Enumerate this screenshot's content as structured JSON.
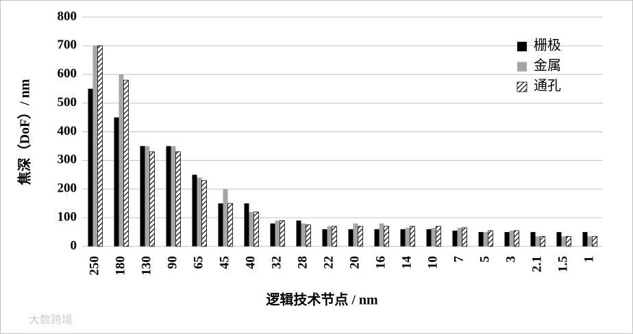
{
  "chart_data": {
    "type": "bar",
    "x_label": "逻辑技术节点 / nm",
    "y_label": "焦深（DoF）/ nm",
    "categories": [
      "250",
      "180",
      "130",
      "90",
      "65",
      "45",
      "40",
      "32",
      "28",
      "22",
      "20",
      "16",
      "14",
      "10",
      "7",
      "5",
      "3",
      "2.1",
      "1.5",
      "1"
    ],
    "series": [
      {
        "name": "栅极",
        "color": "#000000",
        "values": [
          550,
          450,
          350,
          350,
          250,
          150,
          150,
          80,
          90,
          60,
          60,
          60,
          60,
          60,
          55,
          50,
          50,
          50,
          50,
          50
        ]
      },
      {
        "name": "金属",
        "color": "#a6a6a6",
        "values": [
          700,
          600,
          350,
          350,
          240,
          200,
          120,
          90,
          80,
          70,
          80,
          80,
          65,
          65,
          65,
          50,
          55,
          35,
          35,
          35
        ]
      },
      {
        "name": "通孔",
        "color": "#000000",
        "hatch": true,
        "values": [
          700,
          580,
          330,
          330,
          230,
          150,
          120,
          90,
          75,
          70,
          70,
          70,
          70,
          70,
          65,
          55,
          55,
          35,
          35,
          35
        ]
      }
    ],
    "ylim": [
      0,
      800
    ],
    "yticks": [
      0,
      100,
      200,
      300,
      400,
      500,
      600,
      700,
      800
    ],
    "grid": true,
    "legend": "top-right"
  },
  "watermark": "大数跨境"
}
